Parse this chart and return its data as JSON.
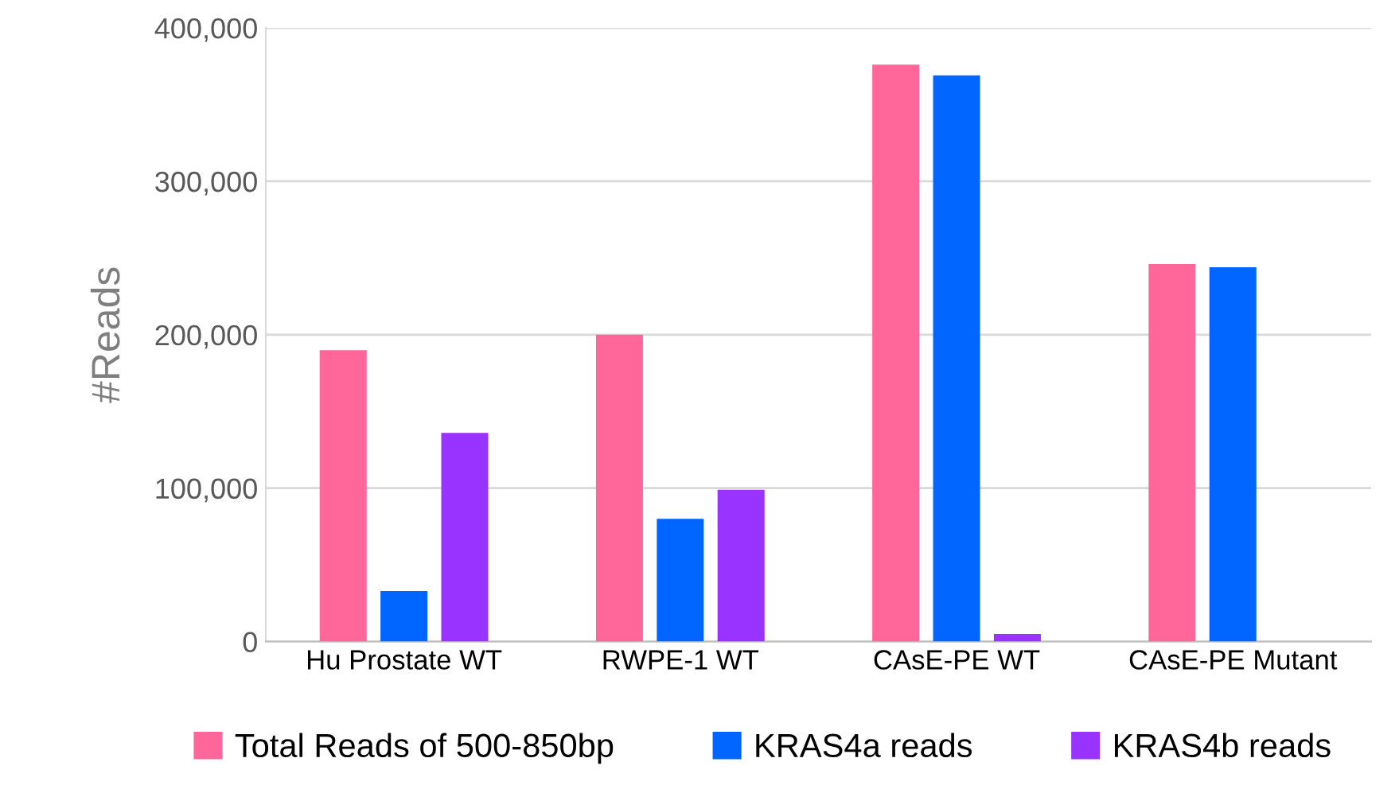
{
  "chart_data": {
    "type": "bar",
    "ylabel": "#Reads",
    "categories": [
      "Hu Prostate WT",
      "RWPE-1 WT",
      "CAsE-PE WT",
      "CAsE-PE Mutant"
    ],
    "series": [
      {
        "name": "Total Reads of 500-850bp",
        "color": "#ff6699",
        "values": [
          190000,
          200000,
          376000,
          246000
        ]
      },
      {
        "name": "KRAS4a reads",
        "color": "#0066ff",
        "values": [
          33000,
          80000,
          369000,
          244000
        ]
      },
      {
        "name": "KRAS4b reads",
        "color": "#9933ff",
        "values": [
          136000,
          99000,
          5000,
          null
        ]
      }
    ],
    "ylim": [
      0,
      400000
    ],
    "yticks": [
      {
        "value": 0,
        "label": "0"
      },
      {
        "value": 100000,
        "label": "100,000"
      },
      {
        "value": 200000,
        "label": "200,000"
      },
      {
        "value": 300000,
        "label": "300,000"
      },
      {
        "value": 400000,
        "label": "400,000"
      }
    ],
    "grid": "y",
    "legend": "bottom"
  }
}
